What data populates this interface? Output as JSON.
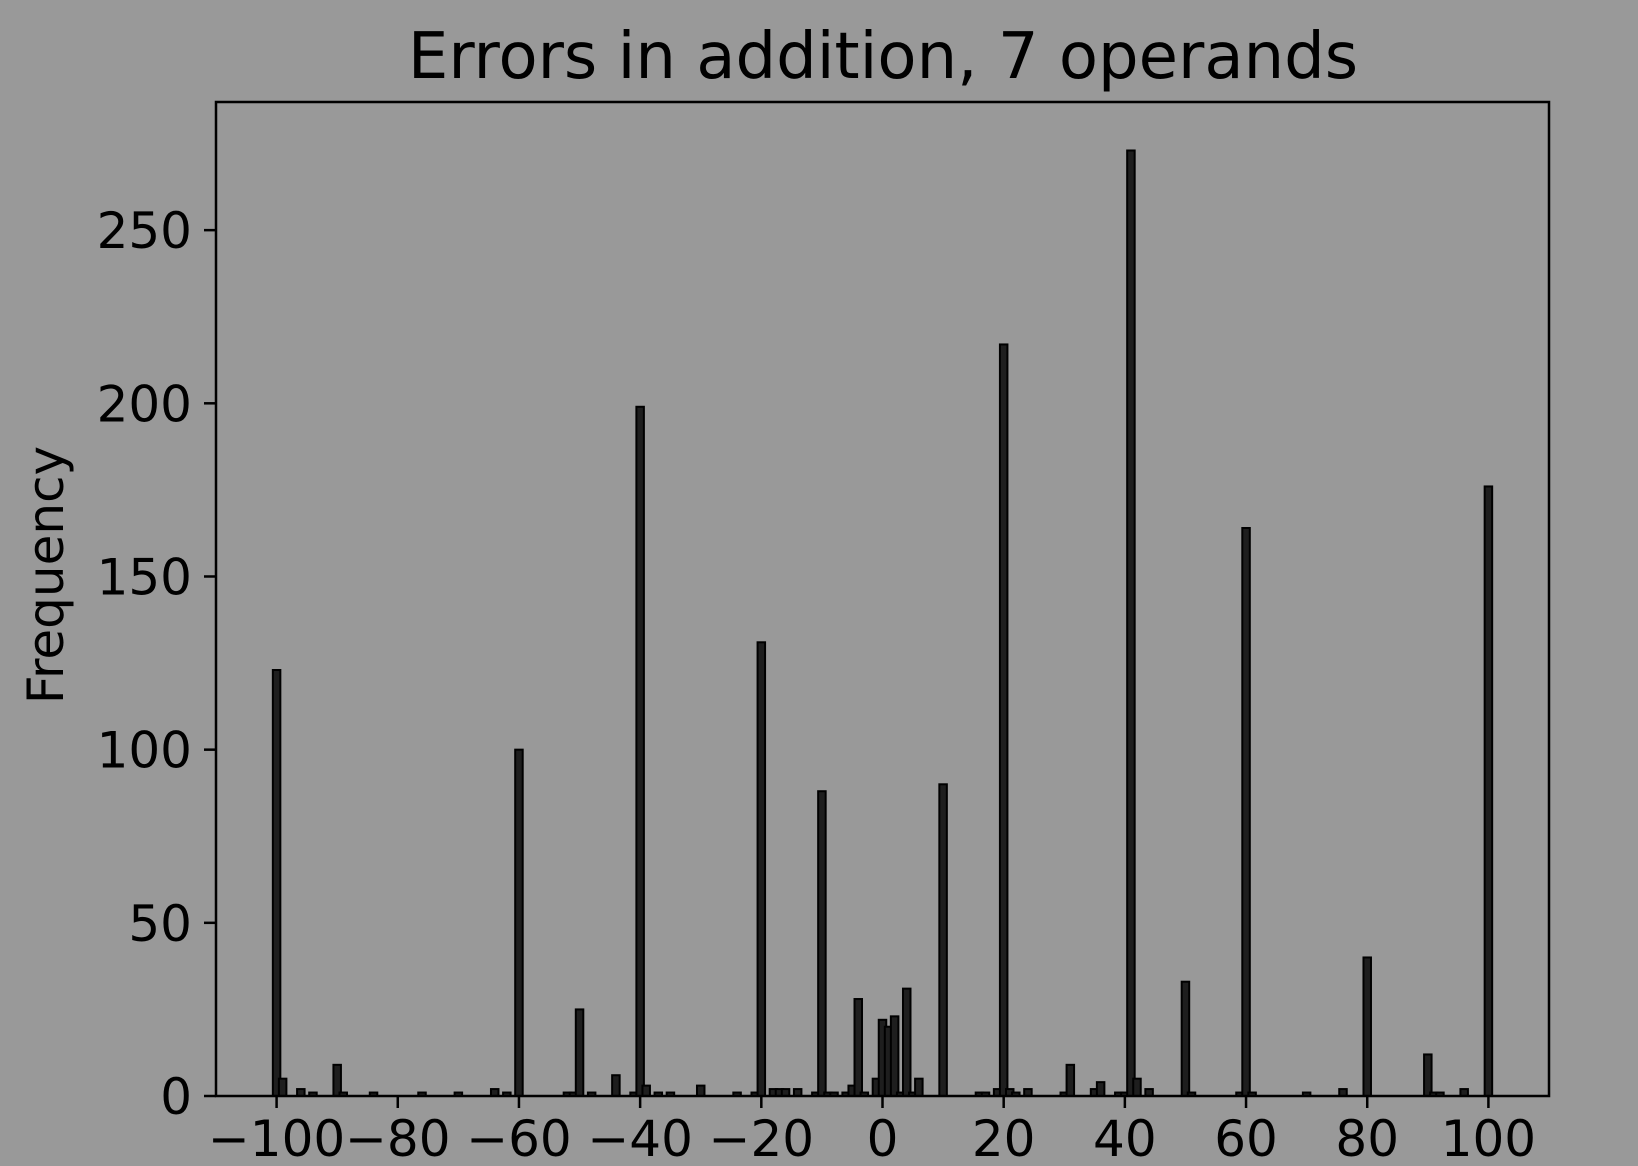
{
  "chart_data": {
    "type": "bar",
    "title": "Errors in addition, 7 operands",
    "xlabel": "",
    "ylabel": "Frequency",
    "xlim": [
      -110,
      110
    ],
    "ylim": [
      0,
      287
    ],
    "grid": false,
    "legend": "none",
    "bar_color": "#1e1e1e",
    "background": "#999999",
    "xticks": [
      -100,
      -80,
      -60,
      -40,
      -20,
      0,
      20,
      40,
      60,
      80,
      100
    ],
    "xtick_labels": [
      "−100",
      "−80",
      "−60",
      "−40",
      "−20",
      "0",
      "20",
      "40",
      "60",
      "80",
      "100"
    ],
    "yticks": [
      0,
      50,
      100,
      150,
      200,
      250
    ],
    "ytick_labels": [
      "0",
      "50",
      "100",
      "150",
      "200",
      "250"
    ],
    "x": [
      -100,
      -99,
      -96,
      -94,
      -90,
      -89,
      -84,
      -76,
      -70,
      -64,
      -62,
      -60,
      -52,
      -51,
      -50,
      -48,
      -44,
      -41,
      -40,
      -39,
      -37,
      -35,
      -30,
      -24,
      -21,
      -20,
      -18,
      -17,
      -16,
      -14,
      -11,
      -10,
      -9,
      -8,
      -6,
      -5,
      -4,
      -3,
      -1,
      0,
      1,
      2,
      3,
      4,
      5,
      6,
      10,
      16,
      17,
      19,
      20,
      21,
      22,
      24,
      30,
      31,
      35,
      36,
      39,
      40,
      41,
      42,
      44,
      50,
      51,
      59,
      60,
      61,
      70,
      76,
      80,
      90,
      91,
      92,
      96,
      100
    ],
    "values": [
      123,
      5,
      2,
      1,
      9,
      1,
      1,
      1,
      1,
      2,
      1,
      100,
      1,
      1,
      25,
      1,
      6,
      1,
      199,
      3,
      1,
      1,
      3,
      1,
      1,
      131,
      2,
      2,
      2,
      2,
      1,
      88,
      1,
      1,
      1,
      3,
      28,
      1,
      5,
      22,
      20,
      23,
      1,
      31,
      1,
      5,
      90,
      1,
      1,
      2,
      217,
      2,
      1,
      2,
      1,
      9,
      2,
      4,
      1,
      1,
      273,
      5,
      2,
      33,
      1,
      1,
      164,
      1,
      1,
      2,
      40,
      12,
      1,
      1,
      2,
      176
    ]
  }
}
